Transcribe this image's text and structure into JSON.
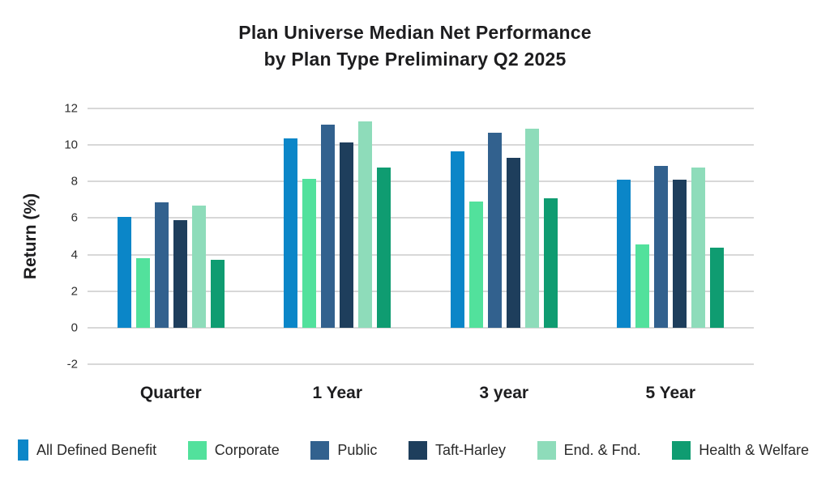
{
  "header": {
    "title_line1": "Plan Universe Median Net Performance",
    "title_line2": "by Plan Type Preliminary Q2 2025"
  },
  "chart_data": {
    "type": "bar",
    "title": "Plan Universe Median Net Performance by Plan Type Preliminary Q2 2025",
    "xlabel": "",
    "ylabel": "Return (%)",
    "ylim": [
      -2,
      12
    ],
    "yticks": [
      12,
      10,
      8,
      6,
      4,
      2,
      0,
      -2
    ],
    "grid": true,
    "grid_color": "#d8d8d8",
    "legend_position": "bottom",
    "categories": [
      "Quarter",
      "1 Year",
      "3 year",
      "5 Year"
    ],
    "series": [
      {
        "name": "All Defined Benefit",
        "color": "#0b86c8",
        "values": [
          6.05,
          10.35,
          9.65,
          8.1
        ]
      },
      {
        "name": "Corporate",
        "color": "#52e19c",
        "values": [
          3.8,
          8.15,
          6.9,
          4.55
        ]
      },
      {
        "name": "Public",
        "color": "#32618e",
        "values": [
          6.85,
          11.1,
          10.65,
          8.85
        ]
      },
      {
        "name": "Taft-Harley",
        "color": "#1e3e5c",
        "values": [
          5.9,
          10.15,
          9.3,
          8.1
        ]
      },
      {
        "name": "End. & Fnd.",
        "color": "#8edcba",
        "values": [
          6.7,
          11.3,
          10.9,
          8.75
        ]
      },
      {
        "name": "Health & Welfare",
        "color": "#0f9c71",
        "values": [
          3.7,
          8.75,
          7.1,
          4.4
        ]
      }
    ]
  }
}
